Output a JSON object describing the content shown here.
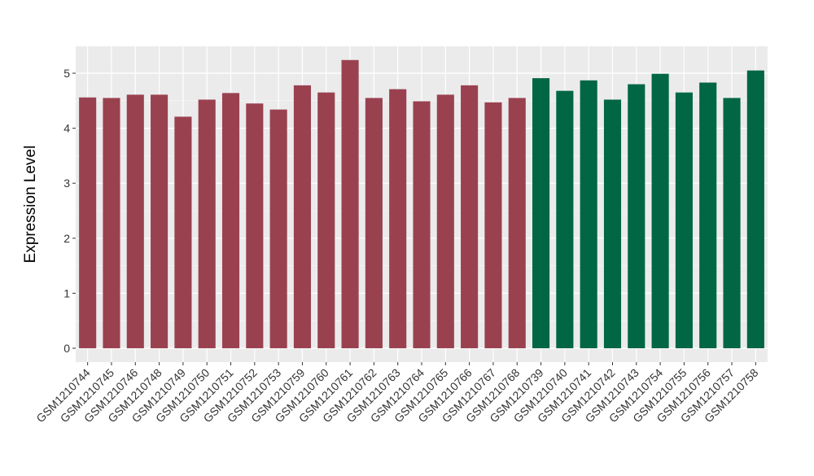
{
  "chart_data": {
    "type": "bar",
    "title": "",
    "xlabel": "",
    "ylabel": "Expression Level",
    "ylim": [
      -0.25,
      5.5
    ],
    "yticks": [
      0,
      1,
      2,
      3,
      4,
      5
    ],
    "grid": true,
    "legend": "none",
    "categories": [
      "GSM1210744",
      "GSM1210745",
      "GSM1210746",
      "GSM1210748",
      "GSM1210749",
      "GSM1210750",
      "GSM1210751",
      "GSM1210752",
      "GSM1210753",
      "GSM1210759",
      "GSM1210760",
      "GSM1210761",
      "GSM1210762",
      "GSM1210763",
      "GSM1210764",
      "GSM1210765",
      "GSM1210766",
      "GSM1210767",
      "GSM1210768",
      "GSM1210739",
      "GSM1210740",
      "GSM1210741",
      "GSM1210742",
      "GSM1210743",
      "GSM1210754",
      "GSM1210755",
      "GSM1210756",
      "GSM1210757",
      "GSM1210758"
    ],
    "values": [
      4.56,
      4.55,
      4.61,
      4.61,
      4.21,
      4.52,
      4.64,
      4.45,
      4.34,
      4.78,
      4.65,
      5.24,
      4.55,
      4.71,
      4.49,
      4.61,
      4.78,
      4.47,
      4.55,
      4.91,
      4.68,
      4.87,
      4.52,
      4.8,
      4.99,
      4.65,
      4.83,
      4.55,
      5.05
    ],
    "groups": [
      0,
      0,
      0,
      0,
      0,
      0,
      0,
      0,
      0,
      0,
      0,
      0,
      0,
      0,
      0,
      0,
      0,
      0,
      0,
      1,
      1,
      1,
      1,
      1,
      1,
      1,
      1,
      1,
      1
    ],
    "colors": [
      "#9a4150",
      "#006644"
    ]
  }
}
